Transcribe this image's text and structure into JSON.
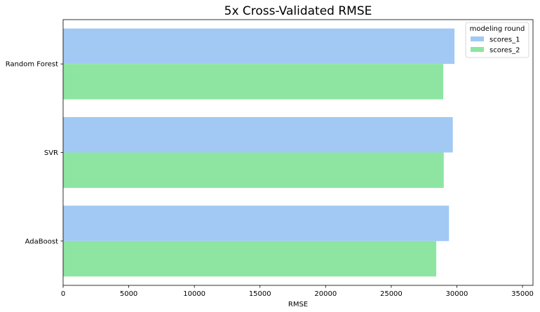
{
  "chart_data": {
    "type": "bar",
    "orientation": "horizontal",
    "title": "5x Cross-Validated RMSE",
    "xlabel": "RMSE",
    "ylabel": "",
    "xlim": [
      0,
      35800
    ],
    "x_ticks": [
      0,
      5000,
      10000,
      15000,
      20000,
      25000,
      30000,
      35000
    ],
    "categories": [
      "Random Forest",
      "SVR",
      "AdaBoost"
    ],
    "series": [
      {
        "name": "scores_1",
        "color": "#a1c9f4",
        "values": [
          29820,
          29690,
          29400
        ]
      },
      {
        "name": "scores_2",
        "color": "#8de5a1",
        "values": [
          28960,
          29000,
          28430
        ]
      }
    ],
    "legend": {
      "title": "modeling round",
      "placement": "top-right"
    },
    "grid": false
  }
}
